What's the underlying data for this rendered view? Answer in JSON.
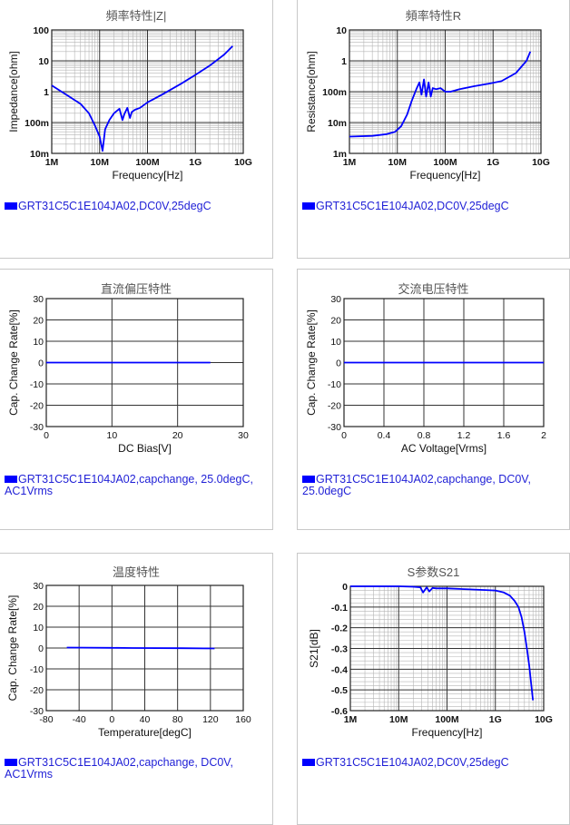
{
  "chart_data": [
    {
      "type": "line",
      "title": "頻率特性|Z|",
      "xlabel": "Frequency[Hz]",
      "ylabel": "Impedance[ohm]",
      "xscale": "log",
      "yscale": "log",
      "xlim": [
        1000000,
        10000000000
      ],
      "ylim": [
        0.01,
        100
      ],
      "xticks": [
        "1M",
        "10M",
        "100M",
        "1G",
        "10G"
      ],
      "yticks": [
        "10m",
        "100m",
        "1",
        "10",
        "100"
      ],
      "series": [
        {
          "name": "GRT31C5C1E104JA02,DC0V,25degC",
          "color": "#0000ff",
          "x": [
            1000000.0,
            2000000.0,
            4000000.0,
            6000000.0,
            8000000.0,
            10000000.0,
            11500000.0,
            13000000.0,
            16000000.0,
            20000000.0,
            26000000.0,
            30000000.0,
            33000000.0,
            38000000.0,
            43000000.0,
            47000000.0,
            55000000.0,
            70000000.0,
            100000000.0,
            200000000.0,
            500000000.0,
            1000000000.0,
            2000000000.0,
            4000000000.0,
            6000000000.0
          ],
          "y": [
            1.6,
            0.8,
            0.4,
            0.2,
            0.08,
            0.035,
            0.012,
            0.06,
            0.12,
            0.2,
            0.28,
            0.12,
            0.19,
            0.3,
            0.14,
            0.22,
            0.26,
            0.3,
            0.45,
            0.8,
            1.8,
            3.5,
            7,
            16,
            30
          ]
        }
      ],
      "legend": [
        "GRT31C5C1E104JA02,DC0V,25degC"
      ],
      "grid": true
    },
    {
      "type": "line",
      "title": "頻率特性R",
      "xlabel": "Frequency[Hz]",
      "ylabel": "Resistance[ohm]",
      "xscale": "log",
      "yscale": "log",
      "xlim": [
        1000000,
        10000000000
      ],
      "ylim": [
        0.001,
        10
      ],
      "xticks": [
        "1M",
        "10M",
        "100M",
        "1G",
        "10G"
      ],
      "yticks": [
        "1m",
        "10m",
        "100m",
        "1",
        "10"
      ],
      "series": [
        {
          "name": "GRT31C5C1E104JA02,DC0V,25degC",
          "color": "#0000ff",
          "x": [
            1000000.0,
            3000000.0,
            6000000.0,
            9000000.0,
            12000000.0,
            16000000.0,
            20000000.0,
            25000000.0,
            29000000.0,
            32000000.0,
            36000000.0,
            40000000.0,
            45000000.0,
            50000000.0,
            55000000.0,
            65000000.0,
            80000000.0,
            100000000.0,
            130000000.0,
            200000000.0,
            400000000.0,
            800000000.0,
            1500000000.0,
            3000000000.0,
            5000000000.0,
            6000000000.0
          ],
          "y": [
            0.0035,
            0.0037,
            0.0042,
            0.005,
            0.0075,
            0.018,
            0.05,
            0.12,
            0.2,
            0.08,
            0.25,
            0.07,
            0.2,
            0.07,
            0.13,
            0.12,
            0.13,
            0.1,
            0.1,
            0.12,
            0.15,
            0.18,
            0.22,
            0.4,
            1.0,
            2.0
          ]
        }
      ],
      "legend": [
        "GRT31C5C1E104JA02,DC0V,25degC"
      ],
      "grid": true
    },
    {
      "type": "line",
      "title": "直流偏压特性",
      "xlabel": "DC Bias[V]",
      "ylabel": "Cap. Change Rate[%]",
      "xlim": [
        0,
        30
      ],
      "ylim": [
        -30,
        30
      ],
      "xticks": [
        "0",
        "10",
        "20",
        "30"
      ],
      "yticks": [
        "-30",
        "-20",
        "-10",
        "0",
        "10",
        "20",
        "30"
      ],
      "series": [
        {
          "name": "GRT31C5C1E104JA02,capchange, 25.0degC, AC1Vrms",
          "color": "#0000ff",
          "x": [
            0,
            25
          ],
          "y": [
            0,
            0
          ]
        }
      ],
      "legend": [
        "GRT31C5C1E104JA02,capchange, 25.0degC, AC1Vrms"
      ],
      "grid": true
    },
    {
      "type": "line",
      "title": "交流电压特性",
      "xlabel": "AC Voltage[Vrms]",
      "ylabel": "Cap. Change Rate[%]",
      "xlim": [
        0,
        2
      ],
      "ylim": [
        -30,
        30
      ],
      "xticks": [
        "0",
        "0.4",
        "0.8",
        "1.2",
        "1.6",
        "2"
      ],
      "yticks": [
        "-30",
        "-20",
        "-10",
        "0",
        "10",
        "20",
        "30"
      ],
      "series": [
        {
          "name": "GRT31C5C1E104JA02,capchange, DC0V, 25.0degC",
          "color": "#0000ff",
          "x": [
            0,
            2
          ],
          "y": [
            0,
            0
          ]
        }
      ],
      "legend": [
        "GRT31C5C1E104JA02,capchange, DC0V, 25.0degC"
      ],
      "grid": true
    },
    {
      "type": "line",
      "title": "温度特性",
      "xlabel": "Temperature[degC]",
      "ylabel": "Cap. Change Rate[%]",
      "xlim": [
        -80,
        160
      ],
      "ylim": [
        -30,
        30
      ],
      "xticks": [
        "-80",
        "-40",
        "0",
        "40",
        "80",
        "120",
        "160"
      ],
      "yticks": [
        "-30",
        "-20",
        "-10",
        "0",
        "10",
        "20",
        "30"
      ],
      "series": [
        {
          "name": "GRT31C5C1E104JA02,capchange, DC0V, AC1Vrms",
          "color": "#0000ff",
          "x": [
            -55,
            0,
            25,
            85,
            125
          ],
          "y": [
            0.2,
            0.1,
            0,
            -0.1,
            -0.2
          ]
        }
      ],
      "legend": [
        "GRT31C5C1E104JA02,capchange, DC0V, AC1Vrms"
      ],
      "grid": true
    },
    {
      "type": "line",
      "title": "S参数S21",
      "xlabel": "Frequency[Hz]",
      "ylabel": "S21[dB]",
      "xscale": "log",
      "xlim": [
        1000000,
        10000000000
      ],
      "ylim": [
        -0.6,
        0
      ],
      "xticks": [
        "1M",
        "10M",
        "100M",
        "1G",
        "10G"
      ],
      "yticks": [
        "-0.6",
        "-0.5",
        "-0.4",
        "-0.3",
        "-0.2",
        "-0.1",
        "0"
      ],
      "series": [
        {
          "name": "GRT31C5C1E104JA02,DC0V,25degC",
          "color": "#0000ff",
          "x": [
            1000000.0,
            10000000.0,
            20000000.0,
            28000000.0,
            32000000.0,
            38000000.0,
            43000000.0,
            50000000.0,
            60000000.0,
            100000000.0,
            300000000.0,
            1000000000.0,
            1500000000.0,
            2000000000.0,
            2500000000.0,
            3000000000.0,
            3500000000.0,
            4000000000.0,
            4500000000.0,
            5000000000.0,
            5500000000.0,
            6000000000.0
          ],
          "y": [
            0,
            0,
            -0.002,
            -0.005,
            -0.03,
            -0.005,
            -0.025,
            -0.008,
            -0.01,
            -0.01,
            -0.015,
            -0.02,
            -0.03,
            -0.045,
            -0.07,
            -0.1,
            -0.15,
            -0.22,
            -0.3,
            -0.38,
            -0.47,
            -0.55
          ]
        }
      ],
      "legend": [
        "GRT31C5C1E104JA02,DC0V,25degC"
      ],
      "grid": true
    }
  ]
}
